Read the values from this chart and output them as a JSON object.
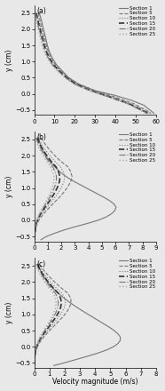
{
  "figure_label_a": "(a)",
  "figure_label_b": "(b)",
  "figure_label_c": "(c)",
  "legend_labels": [
    "Section 1",
    "Section 5",
    "Section 10",
    "Section 15",
    "Section 20",
    "Section 25"
  ],
  "xlabel": "Velocity magnitude (m/s)",
  "ylabel": "y (cm)",
  "ylim": [
    -0.65,
    2.75
  ],
  "yticks": [
    -0.5,
    0.0,
    0.5,
    1.0,
    1.5,
    2.0,
    2.5
  ],
  "panel_a": {
    "xlim": [
      0,
      60
    ],
    "xticks": [
      0,
      10,
      20,
      30,
      40,
      50,
      60
    ],
    "sections": {
      "1": {
        "y": [
          2.5,
          2.3,
          2.1,
          1.9,
          1.7,
          1.5,
          1.3,
          1.1,
          0.9,
          0.7,
          0.5,
          0.3,
          0.1,
          -0.05,
          -0.2,
          -0.35,
          -0.5,
          -0.6
        ],
        "v": [
          2.5,
          3.5,
          4.2,
          5.0,
          5.8,
          6.5,
          7.5,
          9.0,
          11.0,
          14.0,
          17.0,
          22.0,
          30.0,
          40.0,
          48.0,
          54.0,
          57.0,
          59.0
        ]
      },
      "5": {
        "y": [
          2.5,
          2.3,
          2.1,
          1.9,
          1.7,
          1.5,
          1.3,
          1.1,
          0.9,
          0.7,
          0.5,
          0.3,
          0.1,
          -0.1,
          -0.3,
          -0.5,
          -0.6
        ],
        "v": [
          2.0,
          2.8,
          3.5,
          4.3,
          5.2,
          6.0,
          7.0,
          8.5,
          10.5,
          13.5,
          17.0,
          22.0,
          30.0,
          40.0,
          49.0,
          55.0,
          57.5
        ]
      },
      "10": {
        "y": [
          2.5,
          2.3,
          2.1,
          1.9,
          1.7,
          1.5,
          1.3,
          1.1,
          0.9,
          0.7,
          0.5,
          0.3,
          0.1,
          -0.1,
          -0.3,
          -0.5,
          -0.6
        ],
        "v": [
          1.5,
          2.2,
          3.0,
          3.8,
          4.7,
          5.5,
          6.5,
          8.0,
          10.0,
          13.0,
          16.5,
          21.0,
          29.0,
          38.5,
          47.5,
          54.0,
          57.0
        ]
      },
      "15": {
        "y": [
          2.5,
          2.3,
          2.1,
          1.9,
          1.7,
          1.5,
          1.3,
          1.1,
          0.9,
          0.7,
          0.5,
          0.3,
          0.1,
          -0.1,
          -0.3,
          -0.5,
          -0.6
        ],
        "v": [
          1.0,
          1.7,
          2.5,
          3.3,
          4.2,
          5.0,
          6.0,
          7.5,
          9.5,
          12.5,
          16.0,
          20.5,
          28.0,
          37.5,
          46.5,
          53.0,
          56.0
        ]
      },
      "20": {
        "y": [
          2.5,
          2.3,
          2.1,
          1.9,
          1.7,
          1.5,
          1.3,
          1.1,
          0.9,
          0.7,
          0.5,
          0.3,
          0.1,
          -0.1,
          -0.3,
          -0.5,
          -0.6
        ],
        "v": [
          0.7,
          1.3,
          2.0,
          2.8,
          3.7,
          4.5,
          5.5,
          7.0,
          9.0,
          12.0,
          15.5,
          20.0,
          27.5,
          37.0,
          46.0,
          52.5,
          55.5
        ]
      },
      "25": {
        "y": [
          2.5,
          2.3,
          2.1,
          1.9,
          1.7,
          1.5,
          1.3,
          1.1,
          0.9,
          0.7,
          0.5,
          0.3,
          0.1,
          -0.1,
          -0.3,
          -0.5,
          -0.6
        ],
        "v": [
          0.4,
          0.9,
          1.6,
          2.4,
          3.2,
          4.0,
          5.0,
          6.5,
          8.5,
          11.5,
          15.0,
          19.5,
          27.0,
          36.5,
          45.5,
          52.0,
          55.0
        ]
      }
    }
  },
  "panel_b": {
    "xlim": [
      0,
      9
    ],
    "xticks": [
      0,
      1,
      2,
      3,
      4,
      5,
      6,
      7,
      8,
      9
    ],
    "sections": {
      "1": {
        "y": [
          2.55,
          2.5,
          2.4,
          2.3,
          2.2,
          2.1,
          2.0,
          1.9,
          1.8,
          1.7,
          1.6,
          1.5,
          1.4,
          1.3,
          1.2,
          1.1,
          1.0,
          0.9,
          0.8,
          0.7,
          0.6,
          0.5,
          0.4,
          0.3,
          0.2,
          0.1,
          0.0,
          -0.1,
          -0.2,
          -0.3,
          -0.4,
          -0.5,
          -0.6
        ],
        "v": [
          0.3,
          0.35,
          0.42,
          0.5,
          0.6,
          0.72,
          0.85,
          1.0,
          1.2,
          1.42,
          1.65,
          1.9,
          2.2,
          2.55,
          2.95,
          3.4,
          3.85,
          4.3,
          4.75,
          5.2,
          5.6,
          5.9,
          6.05,
          5.95,
          5.7,
          5.3,
          4.7,
          3.9,
          3.0,
          2.2,
          1.5,
          0.9,
          0.5
        ]
      },
      "5": {
        "y": [
          2.55,
          2.45,
          2.35,
          2.25,
          2.15,
          2.05,
          1.95,
          1.85,
          1.75,
          1.65,
          1.5,
          1.35,
          1.2,
          1.05,
          0.9,
          0.75,
          0.6,
          0.45,
          0.3,
          0.15,
          0.0,
          -0.15,
          -0.3,
          -0.45,
          -0.6
        ],
        "v": [
          0.5,
          0.65,
          0.82,
          1.0,
          1.2,
          1.42,
          1.65,
          1.9,
          2.2,
          2.5,
          2.7,
          2.8,
          2.7,
          2.5,
          2.25,
          1.95,
          1.6,
          1.25,
          0.9,
          0.6,
          0.35,
          0.18,
          0.1,
          0.07,
          0.05
        ]
      },
      "10": {
        "y": [
          2.55,
          2.45,
          2.35,
          2.25,
          2.15,
          2.05,
          1.95,
          1.85,
          1.75,
          1.65,
          1.5,
          1.35,
          1.2,
          1.05,
          0.9,
          0.75,
          0.6,
          0.45,
          0.3,
          0.15,
          0.0,
          -0.15,
          -0.3,
          -0.45,
          -0.6
        ],
        "v": [
          0.3,
          0.42,
          0.55,
          0.7,
          0.87,
          1.05,
          1.25,
          1.47,
          1.7,
          1.95,
          2.15,
          2.25,
          2.2,
          2.05,
          1.85,
          1.6,
          1.32,
          1.03,
          0.74,
          0.49,
          0.28,
          0.14,
          0.08,
          0.05,
          0.04
        ]
      },
      "15": {
        "y": [
          2.55,
          2.45,
          2.35,
          2.25,
          2.15,
          2.05,
          1.95,
          1.85,
          1.75,
          1.65,
          1.5,
          1.35,
          1.2,
          1.05,
          0.9,
          0.75,
          0.6,
          0.45,
          0.3,
          0.15,
          0.0,
          -0.15,
          -0.3,
          -0.45,
          -0.6
        ],
        "v": [
          0.2,
          0.3,
          0.42,
          0.55,
          0.7,
          0.85,
          1.02,
          1.2,
          1.4,
          1.62,
          1.8,
          1.9,
          1.87,
          1.75,
          1.58,
          1.37,
          1.13,
          0.88,
          0.63,
          0.41,
          0.24,
          0.12,
          0.07,
          0.04,
          0.03
        ]
      },
      "20": {
        "y": [
          2.55,
          2.45,
          2.35,
          2.25,
          2.15,
          2.05,
          1.95,
          1.85,
          1.75,
          1.65,
          1.5,
          1.35,
          1.2,
          1.05,
          0.9,
          0.75,
          0.6,
          0.45,
          0.3,
          0.15,
          0.0,
          -0.15,
          -0.3,
          -0.45,
          -0.6
        ],
        "v": [
          0.15,
          0.23,
          0.33,
          0.44,
          0.57,
          0.71,
          0.86,
          1.02,
          1.2,
          1.38,
          1.55,
          1.65,
          1.63,
          1.53,
          1.38,
          1.2,
          0.99,
          0.77,
          0.55,
          0.36,
          0.21,
          0.1,
          0.06,
          0.04,
          0.03
        ]
      },
      "25": {
        "y": [
          2.55,
          2.45,
          2.35,
          2.25,
          2.15,
          2.05,
          1.95,
          1.85,
          1.75,
          1.65,
          1.5,
          1.35,
          1.2,
          1.05,
          0.9,
          0.75,
          0.6,
          0.45,
          0.3,
          0.15,
          0.0,
          -0.15,
          -0.3,
          -0.45,
          -0.6
        ],
        "v": [
          0.1,
          0.17,
          0.25,
          0.35,
          0.46,
          0.59,
          0.73,
          0.88,
          1.05,
          1.22,
          1.37,
          1.47,
          1.46,
          1.37,
          1.24,
          1.08,
          0.89,
          0.69,
          0.49,
          0.32,
          0.18,
          0.09,
          0.05,
          0.03,
          0.02
        ]
      }
    }
  },
  "panel_c": {
    "xlim": [
      0,
      8
    ],
    "xticks": [
      0,
      1,
      2,
      3,
      4,
      5,
      6,
      7,
      8
    ],
    "sections": {
      "1": {
        "y": [
          2.55,
          2.5,
          2.4,
          2.3,
          2.2,
          2.1,
          2.0,
          1.9,
          1.8,
          1.7,
          1.6,
          1.5,
          1.4,
          1.3,
          1.2,
          1.1,
          1.0,
          0.9,
          0.8,
          0.7,
          0.6,
          0.5,
          0.4,
          0.3,
          0.2,
          0.1,
          0.0,
          -0.1,
          -0.2,
          -0.3,
          -0.4,
          -0.5,
          -0.58
        ],
        "v": [
          0.25,
          0.3,
          0.38,
          0.48,
          0.6,
          0.73,
          0.88,
          1.05,
          1.25,
          1.48,
          1.72,
          1.98,
          2.25,
          2.55,
          2.87,
          3.2,
          3.55,
          3.9,
          4.25,
          4.6,
          4.95,
          5.25,
          5.5,
          5.65,
          5.65,
          5.5,
          5.2,
          4.75,
          4.15,
          3.45,
          2.7,
          1.95,
          1.3
        ]
      },
      "5": {
        "y": [
          2.55,
          2.45,
          2.35,
          2.25,
          2.15,
          2.05,
          1.95,
          1.85,
          1.75,
          1.65,
          1.5,
          1.35,
          1.2,
          1.05,
          0.9,
          0.75,
          0.6,
          0.45,
          0.3,
          0.15,
          0.0,
          -0.15,
          -0.3,
          -0.45,
          -0.58
        ],
        "v": [
          0.35,
          0.5,
          0.66,
          0.84,
          1.03,
          1.24,
          1.46,
          1.7,
          1.96,
          2.22,
          2.4,
          2.42,
          2.3,
          2.1,
          1.83,
          1.53,
          1.22,
          0.91,
          0.63,
          0.39,
          0.21,
          0.1,
          0.05,
          0.03,
          0.02
        ]
      },
      "10": {
        "y": [
          2.55,
          2.45,
          2.35,
          2.25,
          2.15,
          2.05,
          1.95,
          1.85,
          1.75,
          1.65,
          1.5,
          1.35,
          1.2,
          1.05,
          0.9,
          0.75,
          0.6,
          0.45,
          0.3,
          0.15,
          0.0,
          -0.15,
          -0.3,
          -0.45,
          -0.58
        ],
        "v": [
          0.27,
          0.38,
          0.51,
          0.66,
          0.82,
          0.99,
          1.18,
          1.39,
          1.61,
          1.84,
          2.0,
          2.05,
          1.97,
          1.8,
          1.58,
          1.33,
          1.06,
          0.79,
          0.54,
          0.33,
          0.18,
          0.09,
          0.04,
          0.02,
          0.01
        ]
      },
      "15": {
        "y": [
          2.55,
          2.45,
          2.35,
          2.25,
          2.15,
          2.05,
          1.95,
          1.85,
          1.75,
          1.65,
          1.5,
          1.35,
          1.2,
          1.05,
          0.9,
          0.75,
          0.6,
          0.45,
          0.3,
          0.15,
          0.0,
          -0.15,
          -0.3,
          -0.45,
          -0.58
        ],
        "v": [
          0.22,
          0.31,
          0.42,
          0.55,
          0.69,
          0.84,
          1.01,
          1.19,
          1.39,
          1.59,
          1.74,
          1.79,
          1.73,
          1.59,
          1.4,
          1.17,
          0.94,
          0.7,
          0.47,
          0.29,
          0.16,
          0.08,
          0.04,
          0.02,
          0.01
        ]
      },
      "20": {
        "y": [
          2.55,
          2.45,
          2.35,
          2.25,
          2.15,
          2.05,
          1.95,
          1.85,
          1.75,
          1.65,
          1.5,
          1.35,
          1.2,
          1.05,
          0.9,
          0.75,
          0.6,
          0.45,
          0.3,
          0.15,
          0.0,
          -0.15,
          -0.3,
          -0.45,
          -0.58
        ],
        "v": [
          0.17,
          0.25,
          0.35,
          0.46,
          0.59,
          0.73,
          0.88,
          1.04,
          1.22,
          1.4,
          1.54,
          1.59,
          1.54,
          1.42,
          1.25,
          1.05,
          0.84,
          0.62,
          0.42,
          0.26,
          0.14,
          0.07,
          0.03,
          0.02,
          0.01
        ]
      },
      "25": {
        "y": [
          2.55,
          2.45,
          2.35,
          2.25,
          2.15,
          2.05,
          1.95,
          1.85,
          1.75,
          1.65,
          1.5,
          1.35,
          1.2,
          1.05,
          0.9,
          0.75,
          0.6,
          0.45,
          0.3,
          0.15,
          0.0,
          -0.15,
          -0.3,
          -0.45,
          -0.58
        ],
        "v": [
          0.12,
          0.19,
          0.28,
          0.38,
          0.5,
          0.63,
          0.77,
          0.92,
          1.09,
          1.26,
          1.39,
          1.44,
          1.4,
          1.29,
          1.14,
          0.96,
          0.77,
          0.57,
          0.38,
          0.23,
          0.13,
          0.06,
          0.03,
          0.01,
          0.01
        ]
      }
    }
  },
  "line_styles": {
    "1": {
      "ls": "-",
      "color": "#777777",
      "lw": 0.8
    },
    "5": {
      "ls": "--",
      "color": "#777777",
      "lw": 0.8
    },
    "10": {
      "ls": ":",
      "color": "#777777",
      "lw": 0.8
    },
    "15": {
      "ls": "--",
      "color": "#333333",
      "lw": 1.2
    },
    "20": {
      "ls": "-.",
      "color": "#777777",
      "lw": 0.8
    },
    "25": {
      "ls": ":",
      "color": "#aaaaaa",
      "lw": 1.0
    }
  },
  "bg_color": "#e8e8e8",
  "tick_fontsize": 5,
  "label_fontsize": 5.5,
  "legend_fontsize": 4.0
}
